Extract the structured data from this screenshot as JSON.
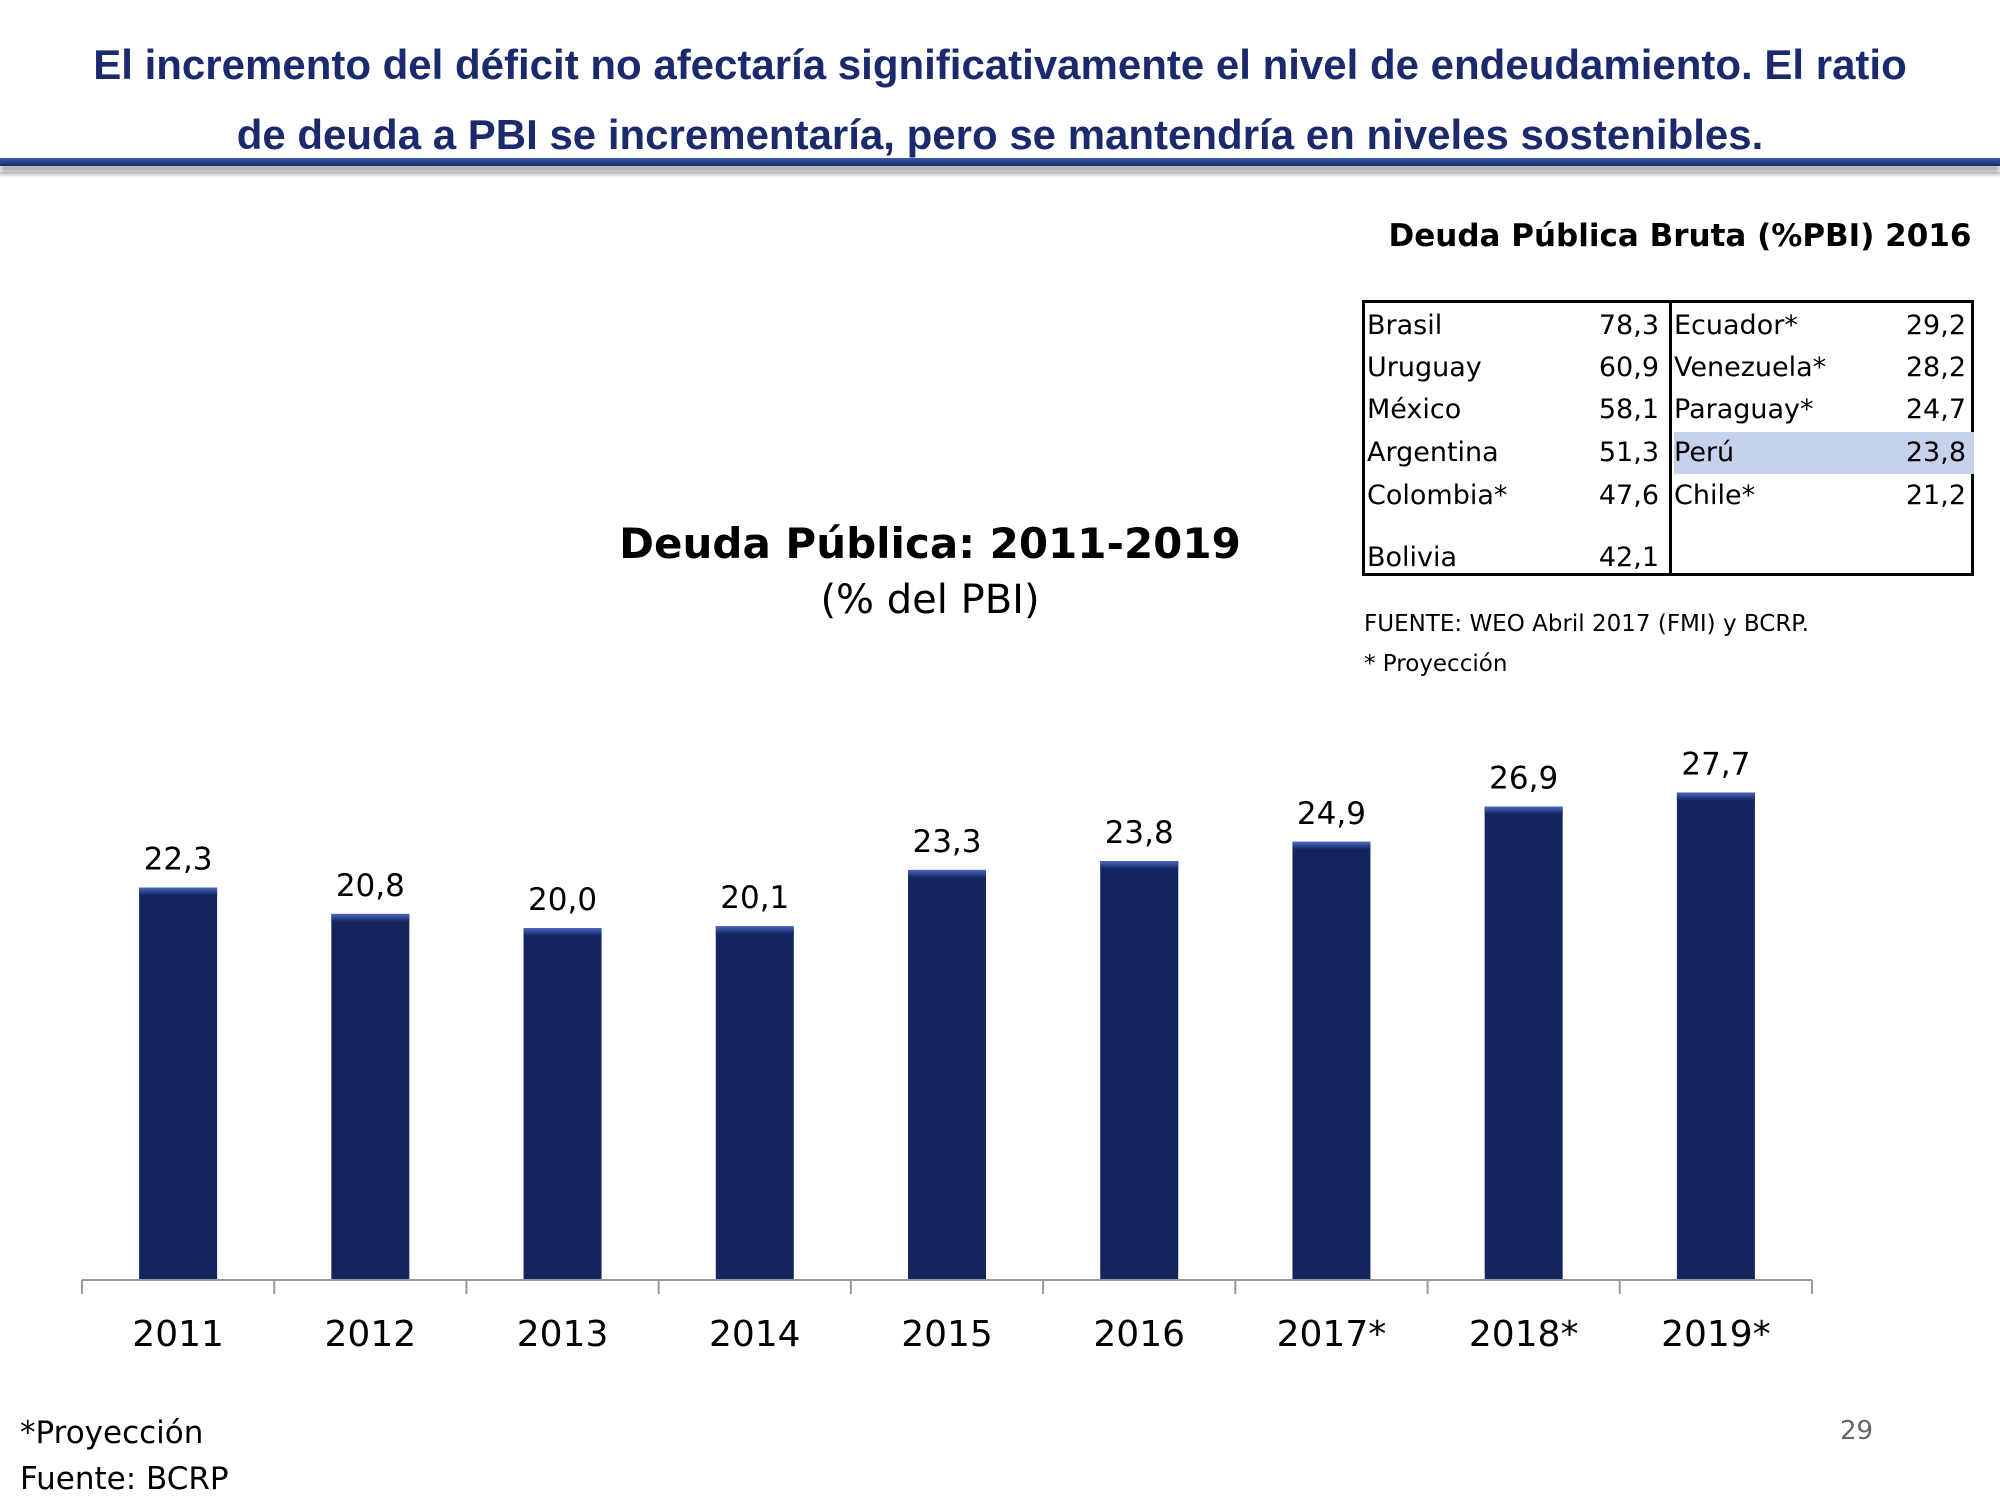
{
  "headline": {
    "line1": "El incremento del déficit no afectaría significativamente el nivel de endeudamiento. El ratio",
    "line2": "de deuda a PBI se incrementaría, pero se mantendría en niveles sostenibles."
  },
  "debt_table": {
    "title": "Deuda Pública Bruta (%PBI) 2016",
    "left": [
      {
        "country": "Brasil",
        "value": "78,3"
      },
      {
        "country": "Uruguay",
        "value": "60,9"
      },
      {
        "country": "México",
        "value": "58,1"
      },
      {
        "country": "Argentina",
        "value": "51,3"
      },
      {
        "country": "Colombia*",
        "value": "47,6"
      },
      {
        "country": "Bolivia",
        "value": "42,1"
      }
    ],
    "right": [
      {
        "country": "Ecuador*",
        "value": "29,2"
      },
      {
        "country": "Venezuela*",
        "value": "28,2"
      },
      {
        "country": "Paraguay*",
        "value": "24,7"
      },
      {
        "country": "Perú",
        "value": "23,8"
      },
      {
        "country": "Chile*",
        "value": "21,2"
      }
    ],
    "source": "FUENTE: WEO Abril 2017 (FMI) y BCRP.",
    "note": "* Proyección"
  },
  "colors": {
    "headline": "#1a2a6c",
    "bar": "#13245e",
    "bar_top": "#3a57b0",
    "highlight": "#c6d2ec"
  },
  "chart_data": {
    "type": "bar",
    "title": "Deuda Pública: 2011-2019",
    "subtitle": "(% del PBI)",
    "categories": [
      "2011",
      "2012",
      "2013",
      "2014",
      "2015",
      "2016",
      "2017*",
      "2018*",
      "2019*"
    ],
    "values": [
      22.3,
      20.8,
      20.0,
      20.1,
      23.3,
      23.8,
      24.9,
      26.9,
      27.7
    ],
    "value_labels": [
      "22,3",
      "20,8",
      "20,0",
      "20,1",
      "23,3",
      "23,8",
      "24,9",
      "26,9",
      "27,7"
    ],
    "ylim": [
      0,
      30
    ],
    "xlabel": "",
    "ylabel": ""
  },
  "footnote": {
    "line1": "*Proyección",
    "line2": "Fuente: BCRP"
  },
  "page_number": "29"
}
